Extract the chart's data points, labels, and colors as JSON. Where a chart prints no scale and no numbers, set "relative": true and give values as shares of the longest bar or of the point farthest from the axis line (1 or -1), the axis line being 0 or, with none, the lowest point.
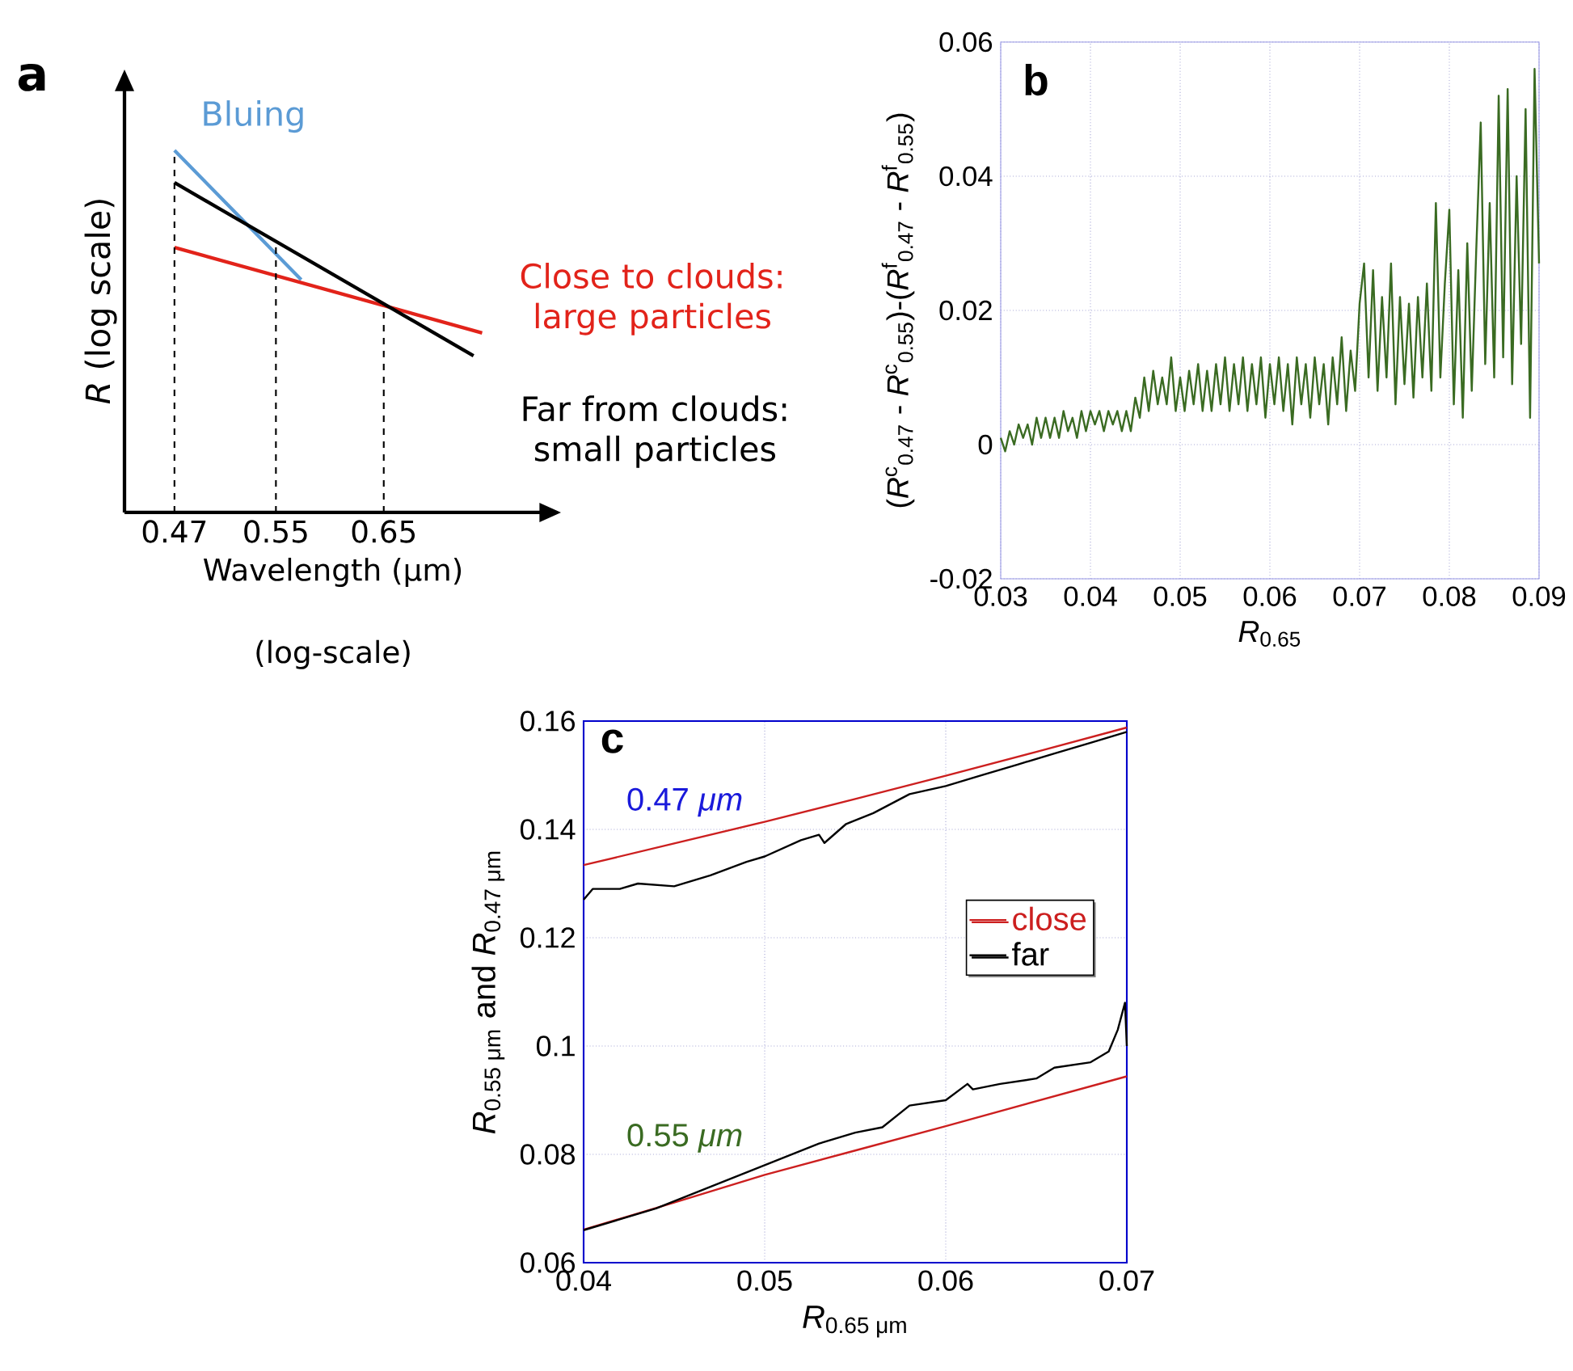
{
  "chart_data": [
    {
      "type": "line",
      "title": "a",
      "xlabel": "Wavelength (μm)",
      "annotations": [
        "(log-scale)"
      ],
      "ylabel": "*R* (log scale)",
      "relative": true,
      "log": "x",
      "legend": false,
      "xlim": [
        0.435,
        0.83
      ],
      "xticks": [
        0.47,
        0.55,
        0.65
      ],
      "ref_lines": [
        {
          "axis": "x",
          "value": 0.47,
          "line_style": "dashed"
        },
        {
          "axis": "x",
          "value": 0.55,
          "line_style": "dashed"
        },
        {
          "axis": "x",
          "value": 0.65,
          "line_style": "dashed"
        }
      ],
      "series": [
        {
          "name": "Bluing",
          "color": "#5b9bd5",
          "x": [
            0.47,
            0.572
          ],
          "values": [
            1,
            0.643
          ]
        },
        {
          "name": "Close to clouds: large particles",
          "color": "#e2231a",
          "x": [
            0.47,
            0.757
          ],
          "values": [
            0.732,
            0.496
          ]
        },
        {
          "name": "Far from clouds: small particles",
          "color": "#000000",
          "x": [
            0.47,
            0.747
          ],
          "values": [
            0.911,
            0.433
          ]
        }
      ]
    },
    {
      "type": "line",
      "title": "b",
      "xlabel": "*R*$_{0.65}$",
      "ylabel": "(*R*$^{c}$$_{0.47}$ - *R*$^{c}$$_{0.55}$)-(*R*$^{f}$$_{0.47}$ - *R*$^{f}$$_{0.55}$)",
      "grid": true,
      "xlim": [
        0.03,
        0.09
      ],
      "xticks": [
        0.03,
        0.04,
        0.05,
        0.06,
        0.07,
        0.08,
        0.09
      ],
      "ylim": [
        -0.02,
        0.06
      ],
      "yticks": [
        -0.02,
        0,
        0.02,
        0.04,
        0.06
      ],
      "x": [
        0.03,
        0.0305,
        0.031,
        0.0315,
        0.032,
        0.0325,
        0.033,
        0.0335,
        0.034,
        0.0345,
        0.035,
        0.0355,
        0.036,
        0.0365,
        0.037,
        0.0375,
        0.038,
        0.0385,
        0.039,
        0.0395,
        0.04,
        0.0405,
        0.041,
        0.0415,
        0.042,
        0.0425,
        0.043,
        0.0435,
        0.044,
        0.0445,
        0.045,
        0.0455,
        0.046,
        0.0465,
        0.047,
        0.0475,
        0.048,
        0.0485,
        0.049,
        0.0495,
        0.05,
        0.0505,
        0.051,
        0.0515,
        0.052,
        0.0525,
        0.053,
        0.0535,
        0.054,
        0.0545,
        0.055,
        0.0555,
        0.056,
        0.0565,
        0.057,
        0.0575,
        0.058,
        0.0585,
        0.059,
        0.0595,
        0.06,
        0.0605,
        0.061,
        0.0615,
        0.062,
        0.0625,
        0.063,
        0.0635,
        0.064,
        0.0645,
        0.065,
        0.0655,
        0.066,
        0.0665,
        0.067,
        0.0675,
        0.068,
        0.0685,
        0.069,
        0.0695,
        0.07,
        0.0705,
        0.071,
        0.0715,
        0.072,
        0.0725,
        0.073,
        0.0735,
        0.074,
        0.0745,
        0.075,
        0.0755,
        0.076,
        0.0765,
        0.077,
        0.0775,
        0.078,
        0.0785,
        0.079,
        0.0795,
        0.08,
        0.0805,
        0.081,
        0.0815,
        0.082,
        0.0825,
        0.083,
        0.0835,
        0.084,
        0.0845,
        0.085,
        0.0855,
        0.086,
        0.0865,
        0.087,
        0.0875,
        0.088,
        0.0885,
        0.089,
        0.0895,
        0.09
      ],
      "series": [
        {
          "color": "#3a6b22",
          "values": [
            0.001,
            -0.001,
            0.002,
            0.0,
            0.003,
            0.001,
            0.003,
            0.0,
            0.004,
            0.001,
            0.004,
            0.001,
            0.004,
            0.001,
            0.005,
            0.002,
            0.004,
            0.001,
            0.005,
            0.002,
            0.005,
            0.003,
            0.005,
            0.002,
            0.005,
            0.003,
            0.005,
            0.002,
            0.005,
            0.002,
            0.007,
            0.004,
            0.01,
            0.005,
            0.011,
            0.006,
            0.01,
            0.006,
            0.013,
            0.005,
            0.01,
            0.005,
            0.011,
            0.006,
            0.012,
            0.005,
            0.011,
            0.005,
            0.012,
            0.006,
            0.013,
            0.005,
            0.012,
            0.006,
            0.013,
            0.005,
            0.012,
            0.006,
            0.013,
            0.004,
            0.012,
            0.006,
            0.013,
            0.005,
            0.012,
            0.003,
            0.013,
            0.006,
            0.012,
            0.004,
            0.013,
            0.006,
            0.012,
            0.003,
            0.013,
            0.006,
            0.016,
            0.005,
            0.014,
            0.008,
            0.021,
            0.027,
            0.01,
            0.026,
            0.008,
            0.022,
            0.01,
            0.027,
            0.006,
            0.022,
            0.009,
            0.021,
            0.007,
            0.022,
            0.01,
            0.024,
            0.008,
            0.036,
            0.01,
            0.024,
            0.035,
            0.006,
            0.026,
            0.004,
            0.03,
            0.008,
            0.029,
            0.048,
            0.012,
            0.036,
            0.01,
            0.052,
            0.013,
            0.053,
            0.009,
            0.04,
            0.015,
            0.05,
            0.004,
            0.056,
            0.027
          ]
        }
      ]
    },
    {
      "type": "line",
      "title": "c",
      "xlabel": "*R*$_{0.65 μm}$",
      "ylabel": "*R*$_{0.55 μm}$ and *R*$_{0.47 μm}$",
      "grid": true,
      "legend": "right",
      "xlim": [
        0.04,
        0.07
      ],
      "xticks": [
        0.04,
        0.05,
        0.06,
        0.07
      ],
      "ylim": [
        0.06,
        0.16
      ],
      "yticks": [
        0.06,
        0.08,
        0.1,
        0.12,
        0.14,
        0.16
      ],
      "annotations": [
        "0.47 *μm*",
        "0.55 *μm*"
      ],
      "series": [
        {
          "name": "close",
          "color": "#cc1f1f",
          "x": [
            0.04,
            0.045,
            0.05,
            0.055,
            0.06,
            0.065,
            0.07
          ],
          "values": [
            0.1334,
            0.1374,
            0.1414,
            0.1456,
            0.1499,
            0.1543,
            0.1588
          ]
        },
        {
          "name": "far",
          "color": "#000000",
          "x": [
            0.04,
            0.0405,
            0.042,
            0.043,
            0.045,
            0.047,
            0.049,
            0.05,
            0.052,
            0.053,
            0.0533,
            0.0545,
            0.056,
            0.058,
            0.06,
            0.062,
            0.064,
            0.066,
            0.068,
            0.07
          ],
          "values": [
            0.127,
            0.129,
            0.129,
            0.13,
            0.1295,
            0.1315,
            0.134,
            0.135,
            0.138,
            0.139,
            0.1375,
            0.141,
            0.143,
            0.1465,
            0.148,
            0.15,
            0.152,
            0.154,
            0.156,
            0.158
          ]
        },
        {
          "color": "#cc1f1f",
          "x": [
            0.04,
            0.045,
            0.05,
            0.055,
            0.06,
            0.065,
            0.07
          ],
          "values": [
            0.0661,
            0.0711,
            0.0762,
            0.0807,
            0.0852,
            0.0898,
            0.0944
          ]
        },
        {
          "color": "#000000",
          "x": [
            0.04,
            0.044,
            0.047,
            0.05,
            0.053,
            0.055,
            0.0565,
            0.058,
            0.06,
            0.0612,
            0.0615,
            0.063,
            0.065,
            0.066,
            0.068,
            0.069,
            0.0695,
            0.0699,
            0.07
          ],
          "values": [
            0.066,
            0.07,
            0.074,
            0.078,
            0.082,
            0.084,
            0.085,
            0.089,
            0.09,
            0.093,
            0.092,
            0.093,
            0.094,
            0.096,
            0.097,
            0.099,
            0.103,
            0.108,
            0.1
          ]
        }
      ]
    }
  ]
}
